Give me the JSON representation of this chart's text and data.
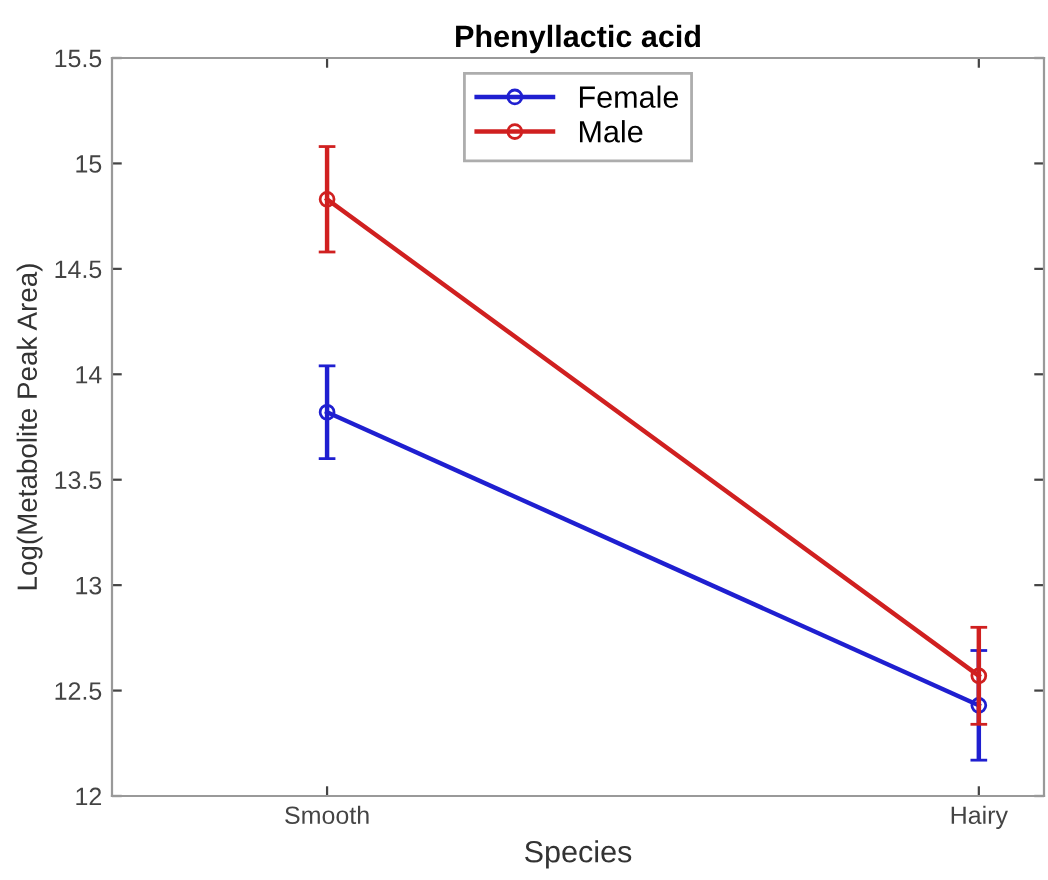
{
  "chart_data": {
    "type": "line",
    "title": "Phenyllactic acid",
    "xlabel": "Species",
    "ylabel": "Log(Metabolite Peak Area)",
    "categories": [
      "Smooth",
      "Hairy"
    ],
    "series": [
      {
        "name": "Female",
        "color": "#1f1fd0",
        "values": [
          13.82,
          12.43
        ],
        "errors": [
          [
            13.6,
            14.04
          ],
          [
            12.17,
            12.69
          ]
        ]
      },
      {
        "name": "Male",
        "color": "#d02020",
        "values": [
          14.83,
          12.57
        ],
        "errors": [
          [
            14.58,
            15.08
          ],
          [
            12.34,
            12.8
          ]
        ]
      }
    ],
    "ylim": [
      12,
      15.5
    ],
    "yticks": [
      12,
      12.5,
      13,
      13.5,
      14,
      14.5,
      15,
      15.5
    ],
    "grid": false,
    "legend": "top",
    "marker": "circle",
    "line_style": "solid"
  }
}
